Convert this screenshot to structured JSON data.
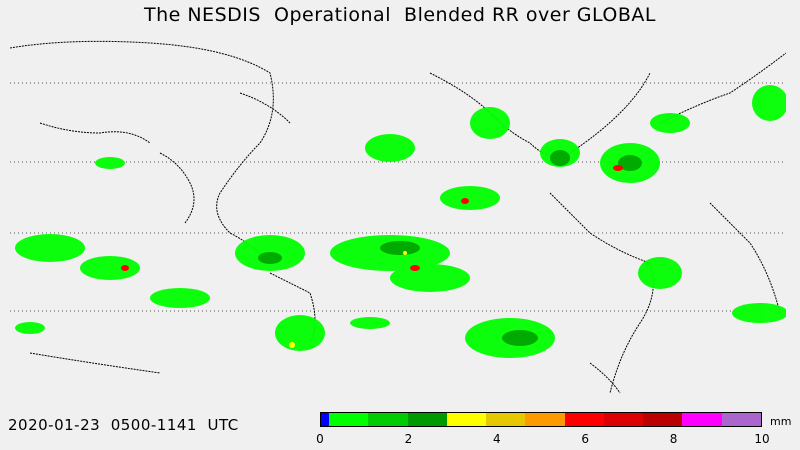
{
  "title": "The NESDIS  Operational  Blended RR over GLOBAL",
  "timestamp": "2020-01-23  0500-1141  UTC",
  "legend": {
    "units": "mm",
    "ticks": [
      "0",
      "2",
      "4",
      "6",
      "8",
      "10"
    ],
    "colors": [
      "#0000ff",
      "#00ff00",
      "#00cc00",
      "#009900",
      "#ffff00",
      "#e6c800",
      "#ff9900",
      "#ff0000",
      "#dd0000",
      "#bb0000",
      "#ff00ff",
      "#aa66cc"
    ]
  },
  "colors": {
    "background": "#f0f0f0",
    "coastline": "#000000",
    "light_rain": "#00ff00",
    "moderate_rain": "#00aa00",
    "heavy_rain": "#ff0000"
  }
}
